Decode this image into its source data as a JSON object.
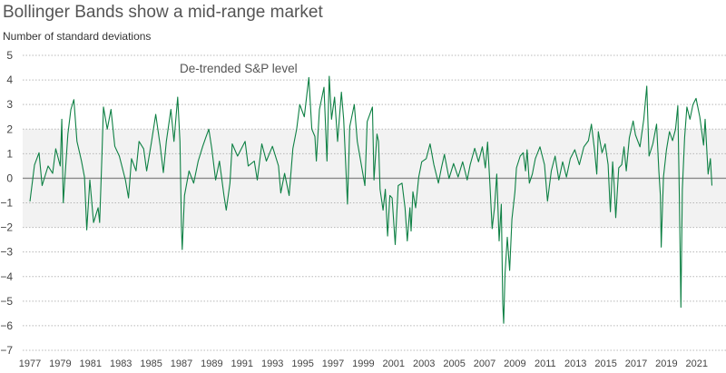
{
  "title": "Bollinger Bands show a mid-range market",
  "subtitle": "Number of standard deviations",
  "chart_data": {
    "type": "line",
    "title": "Bollinger Bands show a mid-range market",
    "ylabel": "Number of standard deviations",
    "xlabel": "",
    "ylim": [
      -7,
      5
    ],
    "xlim": [
      1977,
      2022.2
    ],
    "yticks": [
      5,
      4,
      3,
      2,
      1,
      0,
      -1,
      -2,
      -3,
      -4,
      -5,
      -6,
      -7
    ],
    "ytick_labels": [
      "5",
      "4",
      "3",
      "2",
      "1",
      "0",
      "−1",
      "−2",
      "−3",
      "−4",
      "−5",
      "−6",
      "−7"
    ],
    "xticks": [
      "1977",
      "1979",
      "1981",
      "1983",
      "1985",
      "1987",
      "1989",
      "1991",
      "1993",
      "1995",
      "1997",
      "1999",
      "2001",
      "2003",
      "2005",
      "2007",
      "2009",
      "2011",
      "2013",
      "2015",
      "2017",
      "2019",
      "2021"
    ],
    "band": [
      -2,
      2
    ],
    "grid": true,
    "annotation": "De-trended S&P level",
    "line_color": "#0e8044",
    "band_color": "#f2f2f2",
    "series": [
      {
        "name": "De-trended S&P level",
        "points": [
          [
            1977.0,
            -0.94
          ],
          [
            1977.3,
            0.54
          ],
          [
            1977.6,
            1.04
          ],
          [
            1977.8,
            -0.3
          ],
          [
            1978.2,
            0.5
          ],
          [
            1978.5,
            0.2
          ],
          [
            1978.7,
            1.2
          ],
          [
            1979.0,
            0.5
          ],
          [
            1979.1,
            2.4
          ],
          [
            1979.2,
            -1.0
          ],
          [
            1979.5,
            1.8
          ],
          [
            1979.7,
            2.8
          ],
          [
            1979.9,
            3.2
          ],
          [
            1980.1,
            1.5
          ],
          [
            1980.4,
            0.7
          ],
          [
            1980.6,
            0.05
          ],
          [
            1980.75,
            -2.1
          ],
          [
            1980.95,
            -0.07
          ],
          [
            1981.2,
            -1.8
          ],
          [
            1981.5,
            -1.2
          ],
          [
            1981.6,
            -1.8
          ],
          [
            1981.75,
            0.9
          ],
          [
            1981.85,
            2.9
          ],
          [
            1982.1,
            2.0
          ],
          [
            1982.35,
            2.8
          ],
          [
            1982.6,
            1.3
          ],
          [
            1982.9,
            0.9
          ],
          [
            1983.3,
            -0.07
          ],
          [
            1983.5,
            -0.8
          ],
          [
            1983.7,
            0.8
          ],
          [
            1984.0,
            0.3
          ],
          [
            1984.2,
            1.5
          ],
          [
            1984.5,
            1.2
          ],
          [
            1984.7,
            0.3
          ],
          [
            1985.0,
            1.4
          ],
          [
            1985.3,
            2.6
          ],
          [
            1985.6,
            1.3
          ],
          [
            1985.8,
            0.23
          ],
          [
            1986.0,
            1.5
          ],
          [
            1986.3,
            2.8
          ],
          [
            1986.5,
            1.5
          ],
          [
            1986.75,
            3.3
          ],
          [
            1986.9,
            1.5
          ],
          [
            1987.0,
            -2.1
          ],
          [
            1987.05,
            -2.9
          ],
          [
            1987.2,
            -0.7
          ],
          [
            1987.5,
            0.3
          ],
          [
            1987.8,
            -0.2
          ],
          [
            1988.1,
            0.7
          ],
          [
            1988.4,
            1.3
          ],
          [
            1988.6,
            1.65
          ],
          [
            1988.8,
            2.0
          ],
          [
            1989.0,
            1.2
          ],
          [
            1989.25,
            -0.07
          ],
          [
            1989.5,
            0.7
          ],
          [
            1989.8,
            -0.7
          ],
          [
            1989.95,
            -1.3
          ],
          [
            1990.2,
            -0.2
          ],
          [
            1990.35,
            1.4
          ],
          [
            1990.7,
            0.9
          ],
          [
            1991.2,
            1.5
          ],
          [
            1991.4,
            0.5
          ],
          [
            1991.8,
            0.7
          ],
          [
            1992.0,
            -0.07
          ],
          [
            1992.3,
            1.4
          ],
          [
            1992.6,
            0.7
          ],
          [
            1993.0,
            1.3
          ],
          [
            1993.4,
            0.5
          ],
          [
            1993.55,
            -0.6
          ],
          [
            1993.8,
            0.2
          ],
          [
            1994.1,
            -0.7
          ],
          [
            1994.35,
            1.2
          ],
          [
            1994.6,
            2.0
          ],
          [
            1994.8,
            3.0
          ],
          [
            1995.1,
            2.5
          ],
          [
            1995.4,
            4.1
          ],
          [
            1995.6,
            2.0
          ],
          [
            1995.8,
            1.7
          ],
          [
            1995.9,
            0.7
          ],
          [
            1996.1,
            2.8
          ],
          [
            1996.4,
            3.7
          ],
          [
            1996.6,
            0.7
          ],
          [
            1996.75,
            4.15
          ],
          [
            1996.9,
            2.4
          ],
          [
            1997.1,
            3.3
          ],
          [
            1997.3,
            1.5
          ],
          [
            1997.55,
            3.5
          ],
          [
            1997.7,
            2.4
          ],
          [
            1997.95,
            -1.05
          ],
          [
            1998.1,
            2.1
          ],
          [
            1998.4,
            3.0
          ],
          [
            1998.6,
            1.5
          ],
          [
            1999.1,
            -0.3
          ],
          [
            1999.25,
            2.3
          ],
          [
            1999.6,
            2.9
          ],
          [
            1999.7,
            -0.07
          ],
          [
            1999.9,
            1.8
          ],
          [
            2000.0,
            1.5
          ],
          [
            2000.1,
            -0.45
          ],
          [
            2000.3,
            -1.3
          ],
          [
            2000.45,
            -0.45
          ],
          [
            2000.6,
            -2.35
          ],
          [
            2000.75,
            -0.7
          ],
          [
            2000.9,
            -0.8
          ],
          [
            2001.1,
            -2.7
          ],
          [
            2001.3,
            -0.3
          ],
          [
            2001.55,
            -0.2
          ],
          [
            2001.75,
            -1.2
          ],
          [
            2001.9,
            -2.55
          ],
          [
            2002.07,
            -1.2
          ],
          [
            2002.15,
            -2.15
          ],
          [
            2002.27,
            -0.55
          ],
          [
            2002.45,
            -1.2
          ],
          [
            2002.65,
            0.05
          ],
          [
            2002.85,
            0.67
          ],
          [
            2003.15,
            0.8
          ],
          [
            2003.4,
            1.4
          ],
          [
            2003.65,
            0.55
          ],
          [
            2003.95,
            -0.2
          ],
          [
            2004.15,
            0.42
          ],
          [
            2004.35,
            0.97
          ],
          [
            2004.65,
            -0.01
          ],
          [
            2004.95,
            0.6
          ],
          [
            2005.25,
            0.05
          ],
          [
            2005.55,
            0.67
          ],
          [
            2005.85,
            -0.07
          ],
          [
            2006.05,
            0.55
          ],
          [
            2006.35,
            1.22
          ],
          [
            2006.6,
            0.67
          ],
          [
            2006.85,
            1.28
          ],
          [
            2007.05,
            0.42
          ],
          [
            2007.2,
            1.47
          ],
          [
            2007.35,
            -0.2
          ],
          [
            2007.5,
            -2.05
          ],
          [
            2007.65,
            -1.2
          ],
          [
            2007.8,
            0.17
          ],
          [
            2007.96,
            -2.55
          ],
          [
            2008.1,
            -1.06
          ],
          [
            2008.2,
            -5.1
          ],
          [
            2008.26,
            -5.9
          ],
          [
            2008.35,
            -3.9
          ],
          [
            2008.5,
            -2.4
          ],
          [
            2008.65,
            -3.75
          ],
          [
            2008.8,
            -1.67
          ],
          [
            2009.0,
            -0.56
          ],
          [
            2009.1,
            0.42
          ],
          [
            2009.35,
            0.9
          ],
          [
            2009.55,
            1.04
          ],
          [
            2009.7,
            0.3
          ],
          [
            2009.8,
            1.16
          ],
          [
            2009.95,
            -0.2
          ],
          [
            2010.15,
            0.17
          ],
          [
            2010.35,
            0.8
          ],
          [
            2010.65,
            1.28
          ],
          [
            2010.95,
            0.55
          ],
          [
            2011.15,
            -0.93
          ],
          [
            2011.4,
            0.3
          ],
          [
            2011.65,
            0.9
          ],
          [
            2011.9,
            -0.07
          ],
          [
            2012.15,
            0.67
          ],
          [
            2012.4,
            0.05
          ],
          [
            2012.65,
            0.8
          ],
          [
            2012.95,
            1.16
          ],
          [
            2013.25,
            0.55
          ],
          [
            2013.55,
            1.28
          ],
          [
            2013.85,
            1.53
          ],
          [
            2014.05,
            2.2
          ],
          [
            2014.25,
            1.16
          ],
          [
            2014.4,
            0.17
          ],
          [
            2014.5,
            1.9
          ],
          [
            2014.75,
            1.04
          ],
          [
            2014.95,
            1.4
          ],
          [
            2015.15,
            0.55
          ],
          [
            2015.25,
            -0.8
          ],
          [
            2015.3,
            -1.36
          ],
          [
            2015.45,
            0.67
          ],
          [
            2015.55,
            -0.3
          ],
          [
            2015.65,
            -1.6
          ],
          [
            2015.85,
            0.42
          ],
          [
            2016.05,
            0.55
          ],
          [
            2016.2,
            1.28
          ],
          [
            2016.35,
            0.3
          ],
          [
            2016.55,
            1.65
          ],
          [
            2016.8,
            2.33
          ],
          [
            2016.95,
            1.77
          ],
          [
            2017.25,
            1.28
          ],
          [
            2017.5,
            2.4
          ],
          [
            2017.7,
            3.75
          ],
          [
            2017.85,
            0.9
          ],
          [
            2018.1,
            1.4
          ],
          [
            2018.35,
            2.2
          ],
          [
            2018.5,
            0.3
          ],
          [
            2018.6,
            -0.7
          ],
          [
            2018.65,
            -2.8
          ],
          [
            2018.8,
            0.05
          ],
          [
            2019.0,
            1.16
          ],
          [
            2019.2,
            1.9
          ],
          [
            2019.4,
            1.53
          ],
          [
            2019.6,
            2.0
          ],
          [
            2019.75,
            2.95
          ],
          [
            2019.85,
            -0.75
          ],
          [
            2019.95,
            -5.25
          ],
          [
            2020.05,
            -0.45
          ],
          [
            2020.2,
            1.65
          ],
          [
            2020.35,
            2.9
          ],
          [
            2020.55,
            2.4
          ],
          [
            2020.75,
            3.0
          ],
          [
            2020.95,
            3.25
          ],
          [
            2021.2,
            2.5
          ],
          [
            2021.45,
            1.35
          ],
          [
            2021.55,
            2.4
          ],
          [
            2021.75,
            0.17
          ],
          [
            2021.9,
            0.8
          ],
          [
            2022.0,
            -0.3
          ]
        ]
      }
    ]
  }
}
